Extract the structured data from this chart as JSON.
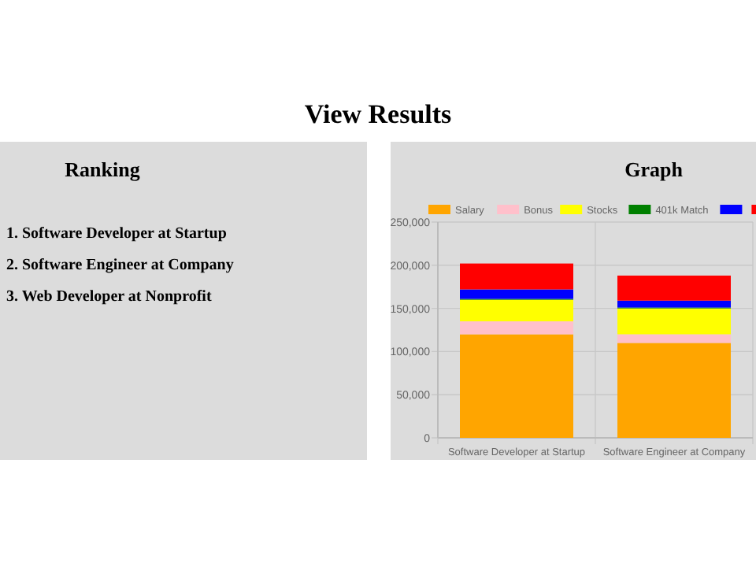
{
  "chart_data": [
    {
      "type": "other",
      "title": "View Results",
      "subtitle": "Ranking",
      "annotations": [
        "1. Software Developer at Startup",
        "2. Software Engineer at Company",
        "3. Web Developer at Nonprofit"
      ]
    },
    {
      "type": "bar",
      "title": "Graph",
      "categories": [
        "Software Developer at Startup",
        "Software Engineer at Company"
      ],
      "stacked": true,
      "grid": true,
      "legend": "top",
      "ylim": [
        0,
        250000
      ],
      "yticks": [
        0,
        {
          "value": 50000,
          "label": "50,000"
        },
        {
          "value": 100000,
          "label": "100,000"
        },
        {
          "value": 150000,
          "label": "150,000"
        },
        {
          "value": 200000,
          "label": "200,000"
        },
        {
          "value": 250000,
          "label": "250,000"
        }
      ],
      "series": [
        {
          "name": "Salary",
          "color": "#ffa500",
          "values": [
            120000,
            110000
          ]
        },
        {
          "name": "Bonus",
          "color": "#ffc0cb",
          "values": [
            15000,
            10000
          ]
        },
        {
          "name": "Stocks",
          "color": "#ffff00",
          "values": [
            25000,
            30000
          ]
        },
        {
          "name": "401k Match",
          "color": "#008000",
          "values": [
            1000,
            1000
          ]
        },
        {
          "color": "#0000ff",
          "values": [
            11000,
            8000
          ]
        },
        {
          "color": "#ff0000",
          "values": [
            30000,
            29000
          ]
        }
      ]
    }
  ]
}
